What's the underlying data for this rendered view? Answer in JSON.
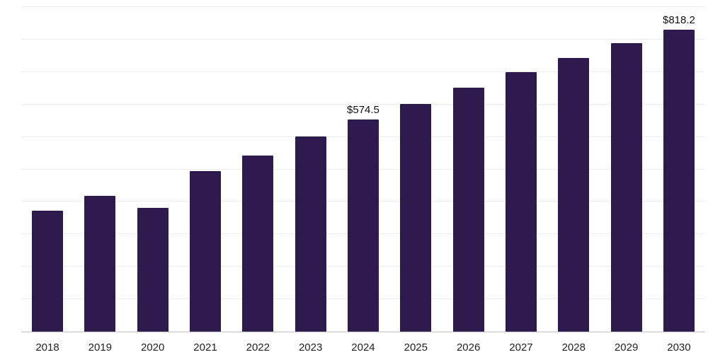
{
  "chart_data": {
    "type": "bar",
    "title": "",
    "xlabel": "",
    "ylabel": "",
    "categories": [
      "2018",
      "2019",
      "2020",
      "2021",
      "2022",
      "2023",
      "2024",
      "2025",
      "2026",
      "2027",
      "2028",
      "2029",
      "2030"
    ],
    "values": [
      328,
      368,
      335,
      435,
      477,
      529,
      574.5,
      617,
      661,
      703,
      742,
      782,
      818.2
    ],
    "point_labels": [
      "",
      "",
      "",
      "",
      "",
      "",
      "$574.5",
      "",
      "",
      "",
      "",
      "",
      "$818.2"
    ],
    "ylim": [
      0,
      880
    ],
    "grid": true,
    "gridline_count": 10,
    "legend": "none",
    "bar_color": "#2d1b4e",
    "gridline_color": "#ededed",
    "axis_line_color": "#c2c2c2",
    "label_color": "#111111",
    "tick_color": "#222222"
  }
}
